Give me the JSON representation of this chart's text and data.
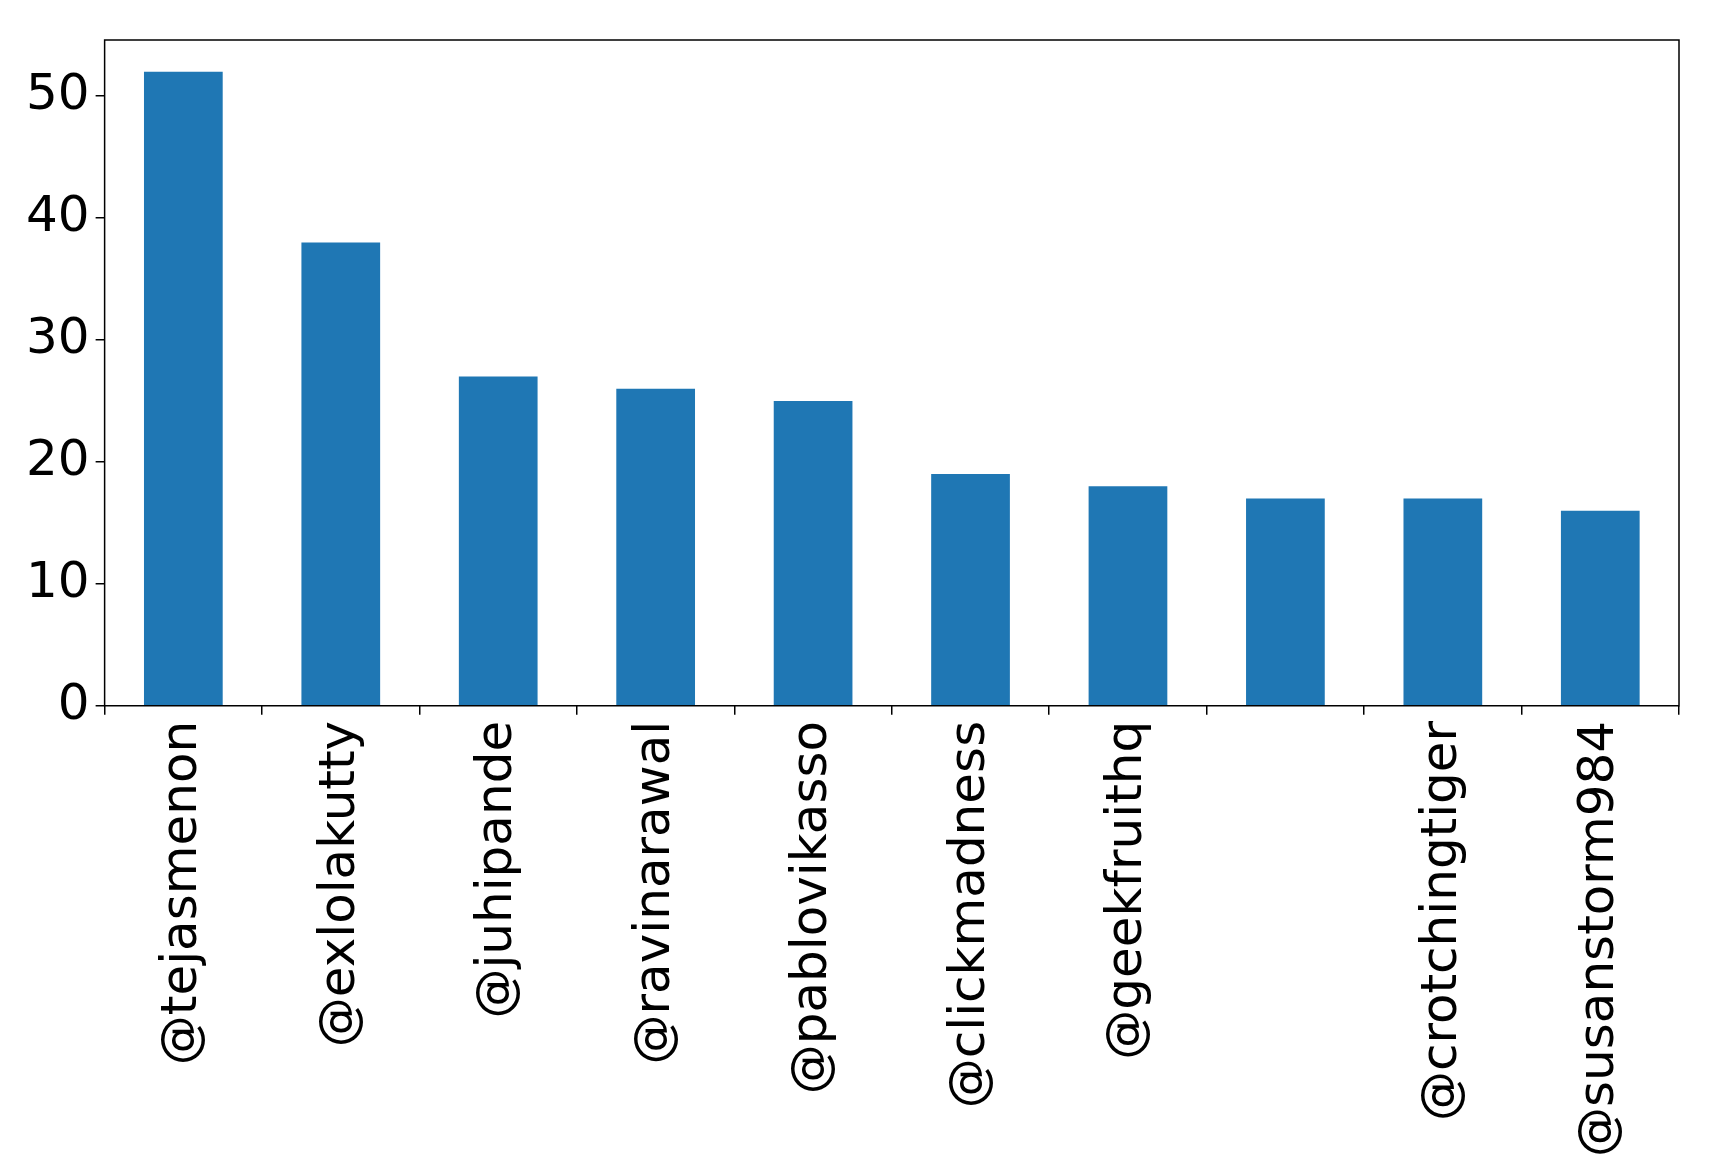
{
  "chart_data": {
    "type": "bar",
    "categories": [
      "@tejasmenon",
      "@exlolakutty",
      "@juhipande",
      "@ravinarawal",
      "@pablovikasso",
      "@clickmadness",
      "@geekfruithq",
      null,
      "@crotchingtiger",
      "@susanstorm984"
    ],
    "values": [
      52,
      38,
      27,
      26,
      25,
      19,
      18,
      17,
      17,
      16
    ],
    "color": "#1f77b4",
    "ylim": [
      0,
      54.6
    ],
    "yticks": [
      0,
      10,
      20,
      30,
      40,
      50
    ],
    "grid": false,
    "legend": false
  }
}
